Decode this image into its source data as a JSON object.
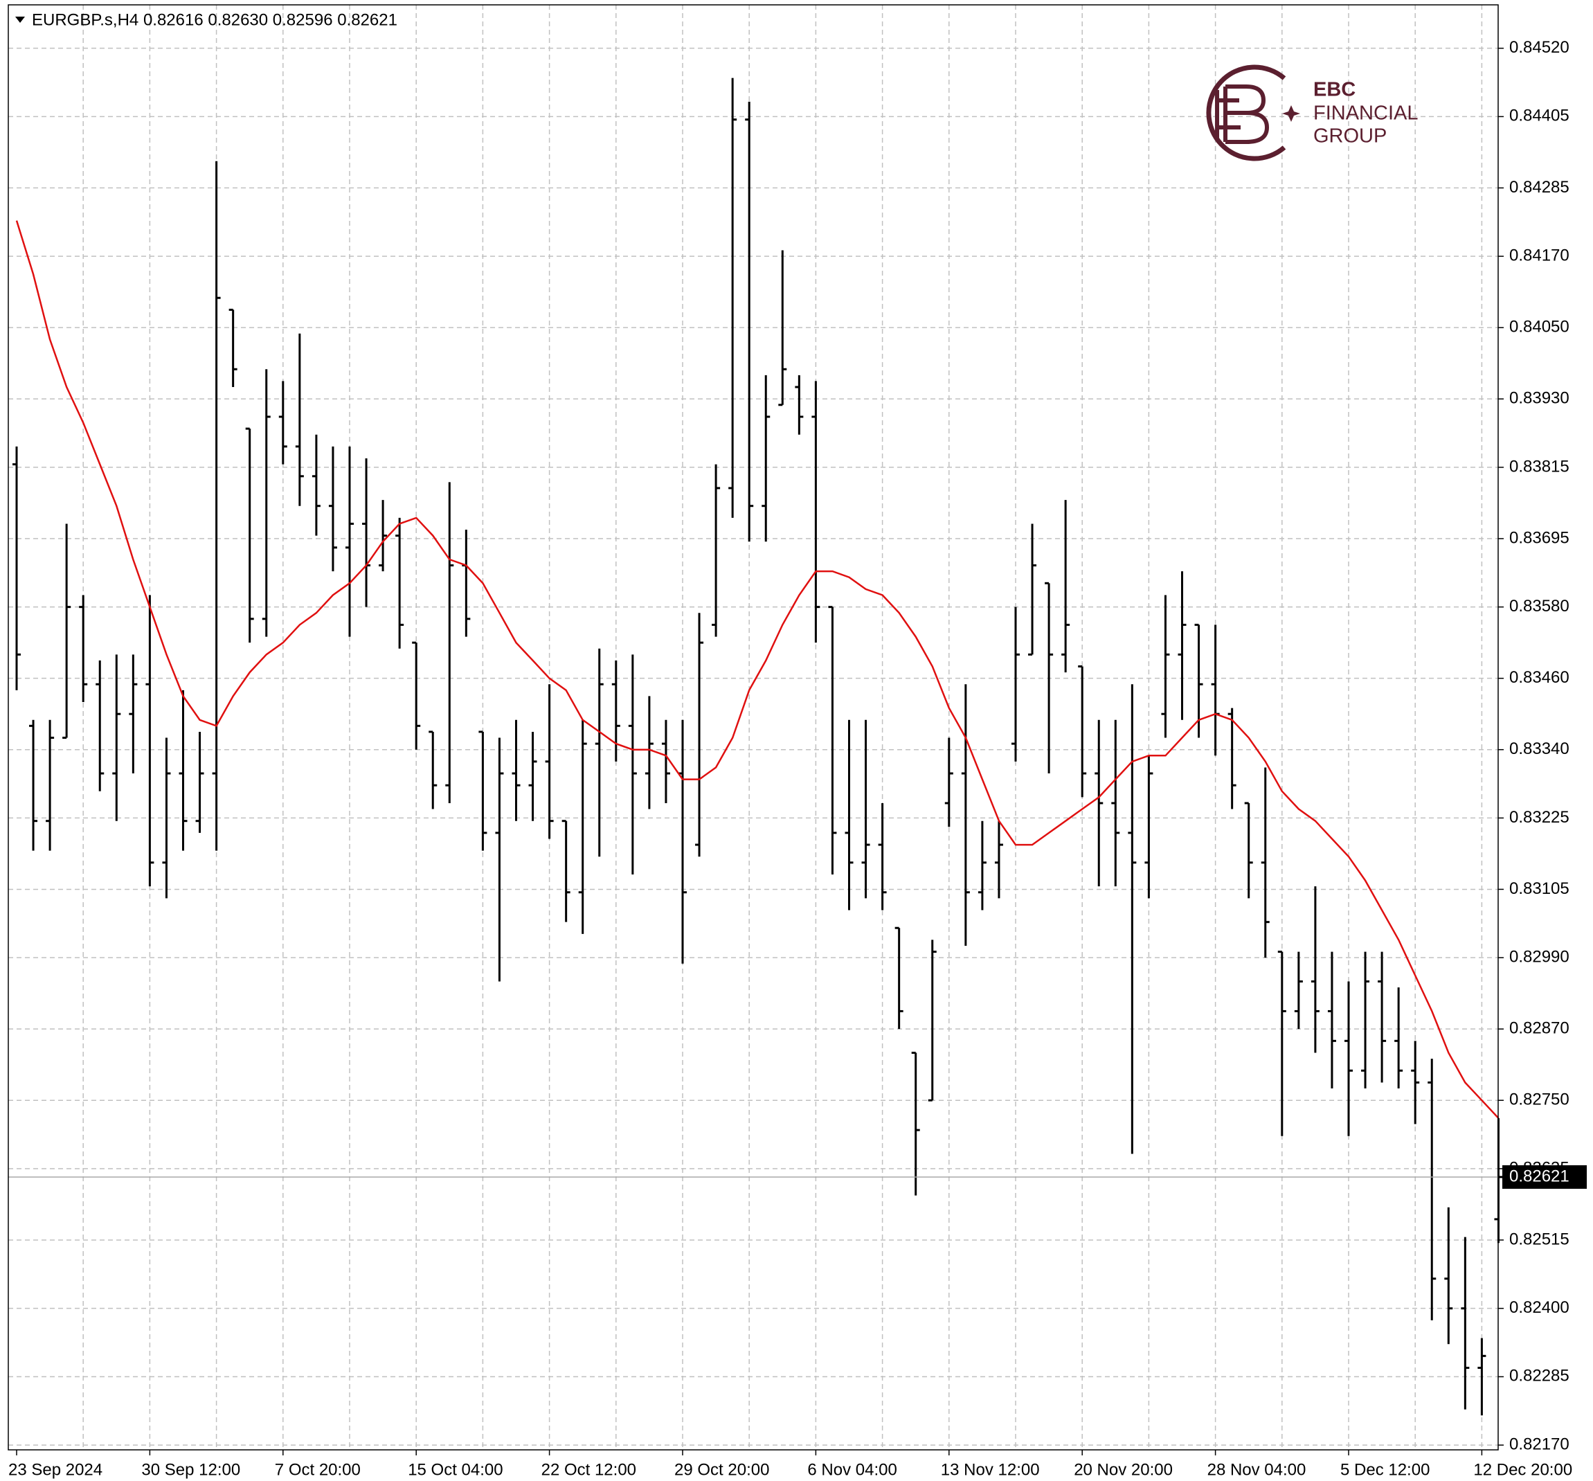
{
  "chart_data": {
    "type": "ohlc",
    "title": "EURGBP.s,H4 0.82616 0.82630 0.82596 0.82621",
    "bar_color": "#000000",
    "x_labels": [
      "23 Sep 2024",
      "30 Sep 12:00",
      "7 Oct 20:00",
      "15 Oct 04:00",
      "22 Oct 12:00",
      "29 Oct 20:00",
      "6 Nov 04:00",
      "13 Nov 12:00",
      "20 Nov 20:00",
      "28 Nov 04:00",
      "5 Dec 12:00",
      "12 Dec 20:00"
    ],
    "ohlc": [
      [
        0.8382,
        0.8385,
        0.8344,
        0.835
      ],
      [
        0.8338,
        0.8339,
        0.8317,
        0.8322
      ],
      [
        0.8322,
        0.8339,
        0.8317,
        0.8336
      ],
      [
        0.8336,
        0.8372,
        0.8336,
        0.8358
      ],
      [
        0.8358,
        0.836,
        0.8342,
        0.8345
      ],
      [
        0.8345,
        0.8349,
        0.8327,
        0.833
      ],
      [
        0.833,
        0.835,
        0.8322,
        0.834
      ],
      [
        0.834,
        0.835,
        0.833,
        0.8345
      ],
      [
        0.8345,
        0.836,
        0.8311,
        0.8315
      ],
      [
        0.8315,
        0.8336,
        0.8309,
        0.833
      ],
      [
        0.833,
        0.8344,
        0.8317,
        0.8322
      ],
      [
        0.8322,
        0.8337,
        0.832,
        0.833
      ],
      [
        0.833,
        0.8433,
        0.8317,
        0.841
      ],
      [
        0.8408,
        0.8408,
        0.8395,
        0.8398
      ],
      [
        0.8388,
        0.8388,
        0.8352,
        0.8356
      ],
      [
        0.8356,
        0.8398,
        0.8353,
        0.839
      ],
      [
        0.839,
        0.8396,
        0.8382,
        0.8385
      ],
      [
        0.8385,
        0.8404,
        0.8375,
        0.838
      ],
      [
        0.838,
        0.8387,
        0.837,
        0.8375
      ],
      [
        0.8375,
        0.8385,
        0.8364,
        0.8368
      ],
      [
        0.8368,
        0.8385,
        0.8353,
        0.8372
      ],
      [
        0.8372,
        0.8383,
        0.8358,
        0.8365
      ],
      [
        0.8365,
        0.8376,
        0.8364,
        0.837
      ],
      [
        0.837,
        0.8373,
        0.8351,
        0.8355
      ],
      [
        0.8352,
        0.8352,
        0.8334,
        0.8338
      ],
      [
        0.8337,
        0.8337,
        0.8324,
        0.8328
      ],
      [
        0.8328,
        0.8379,
        0.8325,
        0.8365
      ],
      [
        0.8365,
        0.8371,
        0.8353,
        0.8356
      ],
      [
        0.8337,
        0.8337,
        0.8317,
        0.832
      ],
      [
        0.832,
        0.8336,
        0.8295,
        0.833
      ],
      [
        0.833,
        0.8339,
        0.8322,
        0.8328
      ],
      [
        0.8328,
        0.8337,
        0.8322,
        0.8332
      ],
      [
        0.8332,
        0.8345,
        0.8319,
        0.8322
      ],
      [
        0.8322,
        0.8322,
        0.8305,
        0.831
      ],
      [
        0.831,
        0.8339,
        0.8303,
        0.8335
      ],
      [
        0.8335,
        0.8351,
        0.8316,
        0.8345
      ],
      [
        0.8345,
        0.8349,
        0.8332,
        0.8338
      ],
      [
        0.8338,
        0.835,
        0.8313,
        0.833
      ],
      [
        0.833,
        0.8343,
        0.8324,
        0.8335
      ],
      [
        0.8335,
        0.8339,
        0.8325,
        0.833
      ],
      [
        0.833,
        0.8339,
        0.8298,
        0.831
      ],
      [
        0.8318,
        0.8357,
        0.8316,
        0.8352
      ],
      [
        0.8355,
        0.8382,
        0.8353,
        0.8378
      ],
      [
        0.8378,
        0.8447,
        0.8373,
        0.844
      ],
      [
        0.844,
        0.8443,
        0.8369,
        0.8375
      ],
      [
        0.8375,
        0.8397,
        0.8369,
        0.839
      ],
      [
        0.8392,
        0.8418,
        0.8392,
        0.8398
      ],
      [
        0.8395,
        0.8397,
        0.8387,
        0.839
      ],
      [
        0.839,
        0.8396,
        0.8352,
        0.8358
      ],
      [
        0.8358,
        0.8358,
        0.8313,
        0.832
      ],
      [
        0.832,
        0.8339,
        0.8307,
        0.8315
      ],
      [
        0.8315,
        0.8339,
        0.8309,
        0.8318
      ],
      [
        0.8318,
        0.8325,
        0.8307,
        0.831
      ],
      [
        0.8304,
        0.8304,
        0.8287,
        0.829
      ],
      [
        0.8283,
        0.8283,
        0.8259,
        0.827
      ],
      [
        0.8275,
        0.8302,
        0.8275,
        0.83
      ],
      [
        0.8325,
        0.8336,
        0.8321,
        0.833
      ],
      [
        0.833,
        0.8345,
        0.8301,
        0.831
      ],
      [
        0.831,
        0.8322,
        0.8307,
        0.8315
      ],
      [
        0.8315,
        0.8322,
        0.8309,
        0.8318
      ],
      [
        0.8335,
        0.8358,
        0.8332,
        0.835
      ],
      [
        0.835,
        0.8372,
        0.835,
        0.8365
      ],
      [
        0.8362,
        0.8362,
        0.833,
        0.835
      ],
      [
        0.835,
        0.8376,
        0.8347,
        0.8355
      ],
      [
        0.8348,
        0.8348,
        0.8326,
        0.833
      ],
      [
        0.833,
        0.8339,
        0.8311,
        0.8325
      ],
      [
        0.8325,
        0.8339,
        0.8311,
        0.832
      ],
      [
        0.832,
        0.8345,
        0.8266,
        0.8315
      ],
      [
        0.8315,
        0.8333,
        0.8309,
        0.833
      ],
      [
        0.834,
        0.836,
        0.8336,
        0.835
      ],
      [
        0.835,
        0.8364,
        0.8339,
        0.8355
      ],
      [
        0.8355,
        0.8355,
        0.8336,
        0.8345
      ],
      [
        0.8345,
        0.8355,
        0.8333,
        0.834
      ],
      [
        0.834,
        0.8341,
        0.8324,
        0.8328
      ],
      [
        0.8325,
        0.8325,
        0.8309,
        0.8315
      ],
      [
        0.8315,
        0.8331,
        0.8299,
        0.8305
      ],
      [
        0.83,
        0.83,
        0.8269,
        0.829
      ],
      [
        0.829,
        0.83,
        0.8287,
        0.8295
      ],
      [
        0.8295,
        0.8311,
        0.8283,
        0.829
      ],
      [
        0.829,
        0.83,
        0.8277,
        0.8285
      ],
      [
        0.8285,
        0.8295,
        0.8269,
        0.828
      ],
      [
        0.828,
        0.83,
        0.8277,
        0.8295
      ],
      [
        0.8295,
        0.83,
        0.8278,
        0.8285
      ],
      [
        0.8285,
        0.8294,
        0.8277,
        0.828
      ],
      [
        0.828,
        0.8285,
        0.8271,
        0.8278
      ],
      [
        0.8278,
        0.8282,
        0.8238,
        0.8245
      ],
      [
        0.8245,
        0.8257,
        0.8234,
        0.824
      ],
      [
        0.824,
        0.8252,
        0.8223,
        0.823
      ],
      [
        0.823,
        0.8235,
        0.8222,
        0.8232
      ],
      [
        0.8255,
        0.8272,
        0.8251,
        0.82621
      ]
    ],
    "ma": {
      "color": "#e01010",
      "values": [
        0.8423,
        0.8414,
        0.8403,
        0.8395,
        0.8389,
        0.8382,
        0.8375,
        0.8366,
        0.8358,
        0.835,
        0.8343,
        0.8339,
        0.8338,
        0.8343,
        0.8347,
        0.835,
        0.8352,
        0.8355,
        0.8357,
        0.836,
        0.8362,
        0.8365,
        0.8369,
        0.8372,
        0.8373,
        0.837,
        0.8366,
        0.8365,
        0.8362,
        0.8357,
        0.8352,
        0.8349,
        0.8346,
        0.8344,
        0.8339,
        0.8337,
        0.8335,
        0.8334,
        0.8334,
        0.8333,
        0.8329,
        0.8329,
        0.8331,
        0.8336,
        0.8344,
        0.8349,
        0.8355,
        0.836,
        0.8364,
        0.8364,
        0.8363,
        0.8361,
        0.836,
        0.8357,
        0.8353,
        0.8348,
        0.8341,
        0.8336,
        0.8329,
        0.8322,
        0.8318,
        0.8318,
        0.832,
        0.8322,
        0.8324,
        0.8326,
        0.8329,
        0.8332,
        0.8333,
        0.8333,
        0.8336,
        0.8339,
        0.834,
        0.8339,
        0.8336,
        0.8332,
        0.8327,
        0.8324,
        0.8322,
        0.8319,
        0.8316,
        0.8312,
        0.8307,
        0.8302,
        0.8296,
        0.829,
        0.8283,
        0.8278,
        0.8275,
        0.8272
      ]
    },
    "last_price": 0.82621,
    "ylim": [
      0.82162,
      0.84593
    ],
    "yticks": [
      {
        "value": 0.8452,
        "label": "0.84520"
      },
      0.84405,
      0.84285,
      {
        "value": 0.8417,
        "label": "0.84170"
      },
      {
        "value": 0.8405,
        "label": "0.84050"
      },
      {
        "value": 0.8393,
        "label": "0.83930"
      },
      0.83815,
      0.83695,
      {
        "value": 0.8358,
        "label": "0.83580"
      },
      {
        "value": 0.8346,
        "label": "0.83460"
      },
      {
        "value": 0.8334,
        "label": "0.83340"
      },
      0.83225,
      0.83105,
      {
        "value": 0.8299,
        "label": "0.82990"
      },
      {
        "value": 0.8287,
        "label": "0.82870"
      },
      {
        "value": 0.8275,
        "label": "0.82750"
      },
      0.82635,
      0.82515,
      {
        "value": 0.824,
        "label": "0.82400"
      },
      0.82285,
      {
        "value": 0.8217,
        "label": "0.82170"
      }
    ],
    "grid": true
  },
  "logo": {
    "brand": "EBC",
    "line1": "FINANCIAL",
    "line2": "GROUP"
  }
}
